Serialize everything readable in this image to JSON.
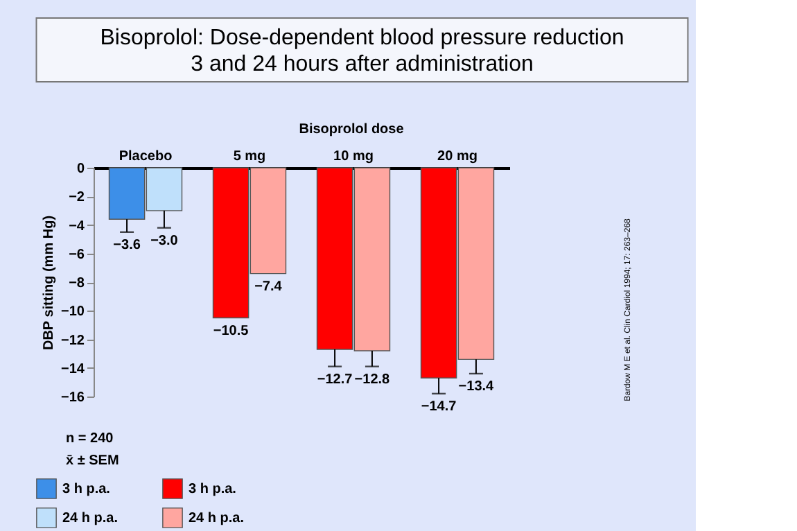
{
  "chart_data": {
    "type": "bar",
    "title": "Bisoprolol: Dose-dependent blood pressure reduction\n3 and 24 hours after administration",
    "ylabel": "DBP sitting (mm Hg)",
    "categories": [
      "Placebo",
      "5 mg",
      "10 mg",
      "20 mg"
    ],
    "series": [
      {
        "name": "3 h p.a.",
        "color": "#3d8fe8",
        "values": [
          -3.6,
          null,
          null,
          null
        ],
        "errors": [
          [
            -4.5,
            -3.6
          ],
          null,
          null,
          null
        ],
        "value_labels": [
          "−3.6",
          null,
          null,
          null
        ]
      },
      {
        "name": "3 h p.a.",
        "color": "#ff0000",
        "values": [
          null,
          -10.5,
          -12.7,
          -14.7
        ],
        "errors": [
          null,
          null,
          [
            -13.9,
            -12.7
          ],
          [
            -15.8,
            -14.7
          ]
        ],
        "value_labels": [
          null,
          "−10.5",
          "−12.7",
          "−14.7"
        ]
      },
      {
        "name": "24 h p.a.",
        "color": "#bfe0fb",
        "values": [
          -3.0,
          null,
          null,
          null
        ],
        "errors": [
          [
            -4.2,
            -3.0
          ],
          null,
          null,
          null
        ],
        "value_labels": [
          "−3.0",
          null,
          null,
          null
        ]
      },
      {
        "name": "24 h p.a.",
        "color": "#ffa6a0",
        "values": [
          null,
          -7.4,
          -12.8,
          -13.4
        ],
        "errors": [
          null,
          null,
          [
            -13.9,
            -12.8
          ],
          [
            -14.4,
            -13.4
          ]
        ],
        "value_labels": [
          null,
          "−7.4",
          "−12.8",
          "−13.4"
        ]
      }
    ],
    "ylim": [
      -16,
      0
    ],
    "yticks": [
      0,
      {
        "value": -2,
        "label": "−2"
      },
      {
        "value": -4,
        "label": "−4"
      },
      {
        "value": -6,
        "label": "−6"
      },
      {
        "value": -8,
        "label": "−8"
      },
      {
        "value": -10,
        "label": "−10"
      },
      {
        "value": -12,
        "label": "−12"
      },
      {
        "value": -14,
        "label": "−14"
      },
      {
        "value": -16,
        "label": "−16"
      }
    ],
    "grid": false,
    "legend": "bottom",
    "annotations": [
      "Bisoprolol dose",
      "n = 240",
      "x̄ ± SEM",
      "Bardow M E et al. Clin Cardiol 1994; 17: 263–268"
    ]
  }
}
